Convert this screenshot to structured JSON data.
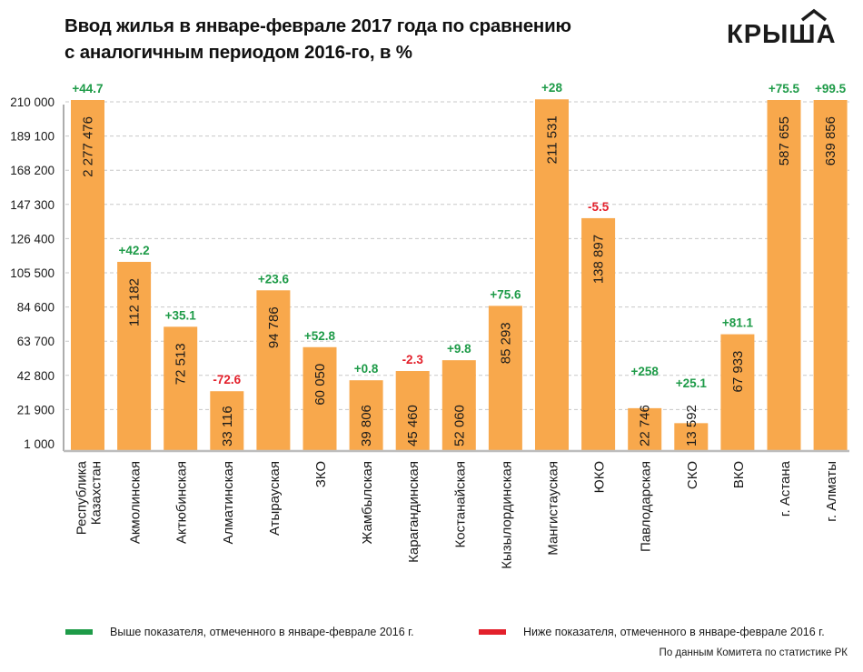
{
  "header": {
    "title_line1": "Ввод жилья в январе-феврале 2017 года по сравнению",
    "title_line2": "с аналогичным периодом 2016-го, в %",
    "logo": "КРЫШA"
  },
  "colors": {
    "bar": "#F8A84C",
    "positive": "#1E9B48",
    "negative": "#E3202B",
    "grid": "#C8C8C8",
    "axis": "#777777",
    "baseline": "#BDBDBD"
  },
  "chart_data": {
    "type": "bar",
    "title": "Ввод жилья в январе-феврале 2017 года по сравнению с аналогичным периодом 2016-го, в %",
    "xlabel": "",
    "ylabel": "",
    "ylim": [
      1000,
      210000
    ],
    "yticks": [
      1000,
      21900,
      42800,
      63700,
      84600,
      105500,
      126400,
      147300,
      168200,
      189100,
      210000
    ],
    "ytick_labels": [
      "1 000",
      "21 900",
      "42 800",
      "63 700",
      "84 600",
      "105 500",
      "126 400",
      "147 300",
      "168 200",
      "189 100",
      "210 000"
    ],
    "grid": true,
    "categories": [
      "Республика Казахстан",
      "Акмолинская",
      "Актюбинская",
      "Алматинская",
      "Атырауская",
      "ЗКО",
      "Жамбылская",
      "Карагандинская",
      "Костанайская",
      "Кызылординская",
      "Мангистауская",
      "ЮКО",
      "Павлодарская",
      "СКО",
      "ВКО",
      "г. Астана",
      "г. Алматы"
    ],
    "category_lines": [
      [
        "Республика",
        "Казахстан"
      ],
      [
        "Акмолинская"
      ],
      [
        "Актюбинская"
      ],
      [
        "Алматинская"
      ],
      [
        "Атырауская"
      ],
      [
        "ЗКО"
      ],
      [
        "Жамбылская"
      ],
      [
        "Карагандинская"
      ],
      [
        "Костанайская"
      ],
      [
        "Кызылординская"
      ],
      [
        "Мангистауская"
      ],
      [
        "ЮКО"
      ],
      [
        "Павлодарская"
      ],
      [
        "СКО"
      ],
      [
        "ВКО"
      ],
      [
        "г. Астана"
      ],
      [
        "г. Алматы"
      ]
    ],
    "values": [
      2277476,
      112182,
      72513,
      33116,
      94786,
      60050,
      39806,
      45460,
      52060,
      85293,
      211531,
      138897,
      22746,
      13592,
      67933,
      587655,
      639856
    ],
    "value_labels": [
      "2 277 476",
      "112 182",
      "72 513",
      "33 116",
      "94 786",
      "60 050",
      "39 806",
      "45 460",
      "52 060",
      "85 293",
      "211 531",
      "138 897",
      "22 746",
      "13 592",
      "67 933",
      "587 655",
      "639 856"
    ],
    "change_pct": [
      44.7,
      42.2,
      35.1,
      -72.6,
      23.6,
      52.8,
      0.8,
      -2.3,
      9.8,
      75.6,
      28,
      -5.5,
      258,
      25.1,
      81.1,
      75.5,
      99.5
    ],
    "change_labels": [
      "+44.7",
      "+42.2",
      "+35.1",
      "-72.6",
      "+23.6",
      "+52.8",
      "+0.8",
      "-2.3",
      "+9.8",
      "+75.6",
      "+28",
      "-5.5",
      "+258",
      "+25.1",
      "+81.1",
      "+75.5",
      "+99.5"
    ],
    "legend": [
      {
        "label": "Выше показателя, отмеченного в январе-феврале 2016 г.",
        "color": "#1E9B48"
      },
      {
        "label": "Ниже показателя, отмеченного в январе-феврале 2016 г.",
        "color": "#E3202B"
      }
    ],
    "legend_position": "bottom",
    "source": "По данным Комитета по статистике РК"
  }
}
